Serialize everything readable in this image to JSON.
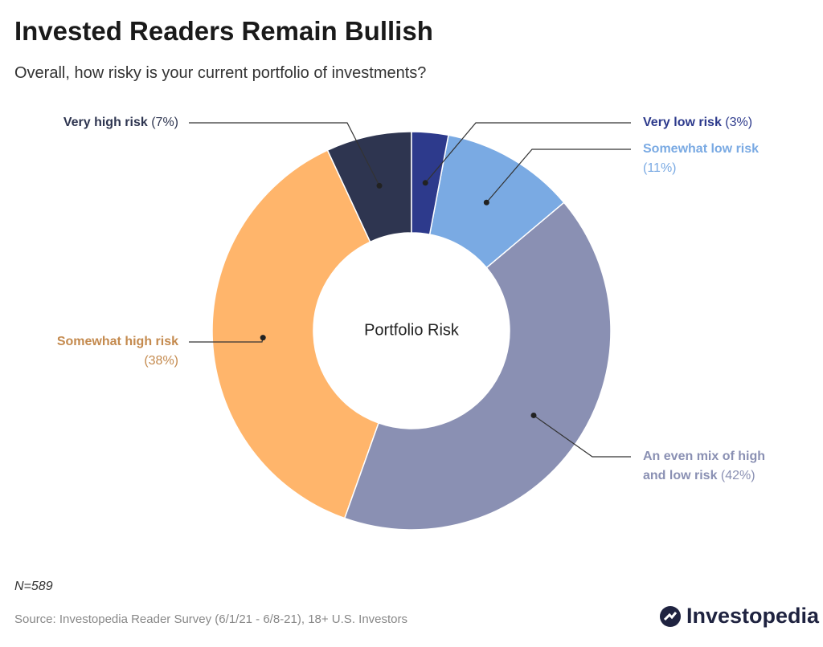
{
  "chart_data": {
    "type": "donut",
    "title": "Invested Readers Remain Bullish",
    "subtitle": "Overall, how risky is your current portfolio of investments?",
    "center_label": "Portfolio Risk",
    "categories": [
      "Very low risk",
      "Somewhat low risk",
      "An even mix of high and low risk",
      "Somewhat high risk",
      "Very high risk"
    ],
    "values": [
      3,
      11,
      42,
      38,
      7
    ],
    "value_labels": [
      "(3%)",
      "(11%)",
      "(42%)",
      "(38%)",
      "(7%)"
    ],
    "colors": [
      "#2d3a8c",
      "#7aaae3",
      "#8a90b3",
      "#ffb56b",
      "#2e3550"
    ],
    "label_colors": [
      "#2d3a8c",
      "#7aaae3",
      "#8a90b3",
      "#c48a4e",
      "#2e3550"
    ],
    "note": "N=589",
    "source": "Source: Investopedia Reader Survey (6/1/21 - 6/8-21), 18+ U.S. Investors"
  },
  "logo": "Investopedia"
}
